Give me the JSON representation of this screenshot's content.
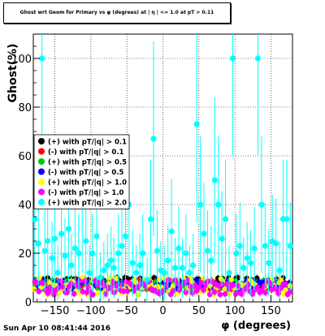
{
  "chart_data": {
    "type": "scatter",
    "title": "Ghost wrt Geom for Primary vs φ (degrees) at | η | <= 1.0 at pT > 0.11",
    "xlabel": "φ (degrees)",
    "ylabel": "Ghost(%)",
    "xlim": [
      -180,
      180
    ],
    "ylim": [
      0,
      110
    ],
    "xticks": [
      -150,
      -100,
      -50,
      0,
      50,
      100,
      150
    ],
    "yticks": [
      0,
      20,
      40,
      60,
      80,
      100
    ],
    "grid": true,
    "legend_position": "left-middle",
    "series": [
      {
        "name": "(+) with pT/|q| > 0.1",
        "color": "#000000",
        "seed": 11,
        "band": [
          6,
          10
        ]
      },
      {
        "name": "(-) with pT/|q| > 0.1",
        "color": "#ff0000",
        "seed": 23,
        "band": [
          5,
          9
        ]
      },
      {
        "name": "(+) with pT/|q| > 0.5",
        "color": "#00cc00",
        "seed": 37,
        "band": [
          5,
          9
        ]
      },
      {
        "name": "(-) with pT/|q| > 0.5",
        "color": "#0000ff",
        "seed": 41,
        "band": [
          5,
          9
        ]
      },
      {
        "name": "(+) with pT/|q| > 1.0",
        "color": "#ffff00",
        "seed": 53,
        "band": [
          3,
          10
        ]
      },
      {
        "name": "(-) with pT/|q| > 1.0",
        "color": "#ff00ff",
        "seed": 67,
        "band": [
          3,
          9
        ]
      },
      {
        "name": "(+) with pT/|q| > 2.0",
        "color": "#00ffff",
        "points": [
          [
            -178,
            34
          ],
          [
            -173,
            24
          ],
          [
            -168,
            100
          ],
          [
            -164,
            21
          ],
          [
            -160,
            25
          ],
          [
            -154,
            18
          ],
          [
            -150,
            26
          ],
          [
            -146,
            12
          ],
          [
            -141,
            28
          ],
          [
            -136,
            19
          ],
          [
            -131,
            30
          ],
          [
            -127,
            15
          ],
          [
            -122,
            22
          ],
          [
            -117,
            20
          ],
          [
            -112,
            40
          ],
          [
            -107,
            25
          ],
          [
            -102,
            12
          ],
          [
            -98,
            20
          ],
          [
            -92,
            27
          ],
          [
            -87,
            10
          ],
          [
            -82,
            13
          ],
          [
            -77,
            15
          ],
          [
            -72,
            17
          ],
          [
            -68,
            14
          ],
          [
            -62,
            20
          ],
          [
            -57,
            23
          ],
          [
            -52,
            27
          ],
          [
            -47,
            40
          ],
          [
            -42,
            16
          ],
          [
            -37,
            12
          ],
          [
            -32,
            15
          ],
          [
            -28,
            20
          ],
          [
            -22,
            9
          ],
          [
            -17,
            34
          ],
          [
            -13,
            67
          ],
          [
            -8,
            21
          ],
          [
            -3,
            13
          ],
          [
            2,
            12
          ],
          [
            7,
            17
          ],
          [
            12,
            29
          ],
          [
            17,
            14
          ],
          [
            22,
            22
          ],
          [
            27,
            14
          ],
          [
            32,
            20
          ],
          [
            37,
            12
          ],
          [
            42,
            15
          ],
          [
            47,
            73
          ],
          [
            52,
            40
          ],
          [
            57,
            28
          ],
          [
            62,
            21
          ],
          [
            67,
            17
          ],
          [
            72,
            50
          ],
          [
            77,
            40
          ],
          [
            82,
            26
          ],
          [
            87,
            34
          ],
          [
            92,
            12
          ],
          [
            97,
            100
          ],
          [
            102,
            20
          ],
          [
            107,
            23
          ],
          [
            112,
            14
          ],
          [
            117,
            18
          ],
          [
            122,
            16
          ],
          [
            127,
            22
          ],
          [
            132,
            100
          ],
          [
            137,
            40
          ],
          [
            142,
            23
          ],
          [
            147,
            16
          ],
          [
            152,
            25
          ],
          [
            157,
            24
          ],
          [
            162,
            13
          ],
          [
            167,
            34
          ],
          [
            172,
            34
          ],
          [
            177,
            23
          ]
        ]
      }
    ]
  },
  "footer": {
    "timestamp": "Sun Apr 10 08:41:44 2016"
  }
}
